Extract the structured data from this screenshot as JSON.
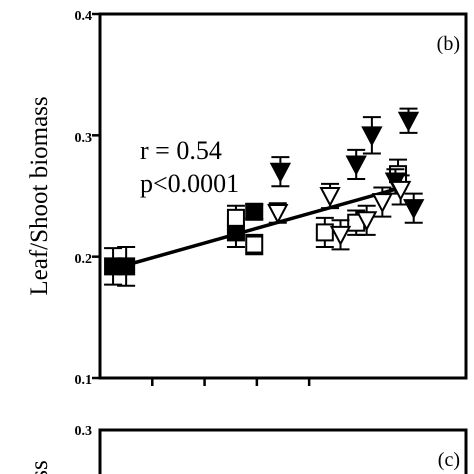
{
  "chart_data": [
    {
      "type": "scatter",
      "panel_label": "(b)",
      "ylabel": "Leaf/Shoot biomass",
      "xlabel": "",
      "ylim": [
        0.1,
        0.4
      ],
      "yticks": [
        "0.1",
        "0.2",
        "0.3",
        "0.4"
      ],
      "xlim": [
        0,
        7
      ],
      "xtick_positions": [
        1,
        2,
        3,
        4
      ],
      "annotations": [
        "r = 0.54",
        "p<0.0001"
      ],
      "series": [
        {
          "marker": "filled-square",
          "points": [
            {
              "x": 0.25,
              "y": 0.192,
              "err": 0.015
            },
            {
              "x": 0.5,
              "y": 0.192,
              "err": 0.016
            },
            {
              "x": 2.6,
              "y": 0.22,
              "err": 0.012
            },
            {
              "x": 2.95,
              "y": 0.237,
              "err": 0.006
            }
          ]
        },
        {
          "marker": "open-square",
          "points": [
            {
              "x": 2.6,
              "y": 0.232,
              "err": 0.01
            },
            {
              "x": 2.95,
              "y": 0.21,
              "err": 0.008
            },
            {
              "x": 4.3,
              "y": 0.22,
              "err": 0.012
            },
            {
              "x": 4.9,
              "y": 0.228,
              "err": 0.01
            },
            {
              "x": 5.7,
              "y": 0.268,
              "err": 0.012
            }
          ]
        },
        {
          "marker": "filled-triangle-down",
          "points": [
            {
              "x": 3.45,
              "y": 0.27,
              "err": 0.012
            },
            {
              "x": 4.9,
              "y": 0.276,
              "err": 0.012
            },
            {
              "x": 5.2,
              "y": 0.3,
              "err": 0.015
            },
            {
              "x": 5.65,
              "y": 0.262,
              "err": 0.01
            },
            {
              "x": 5.9,
              "y": 0.312,
              "err": 0.01
            },
            {
              "x": 6.0,
              "y": 0.24,
              "err": 0.012
            }
          ]
        },
        {
          "marker": "open-triangle-down",
          "points": [
            {
              "x": 3.4,
              "y": 0.236,
              "err": 0.008
            },
            {
              "x": 4.4,
              "y": 0.25,
              "err": 0.01
            },
            {
              "x": 4.6,
              "y": 0.218,
              "err": 0.012
            },
            {
              "x": 5.1,
              "y": 0.23,
              "err": 0.012
            },
            {
              "x": 5.4,
              "y": 0.245,
              "err": 0.012
            },
            {
              "x": 5.75,
              "y": 0.255,
              "err": 0.012
            }
          ]
        }
      ],
      "regression_line": {
        "x": [
          0.25,
          5.85
        ],
        "y": [
          0.19,
          0.258
        ]
      }
    },
    {
      "type": "scatter",
      "panel_label": "(c)",
      "ylabel": "ss",
      "yticks": [
        "0.3"
      ]
    }
  ]
}
